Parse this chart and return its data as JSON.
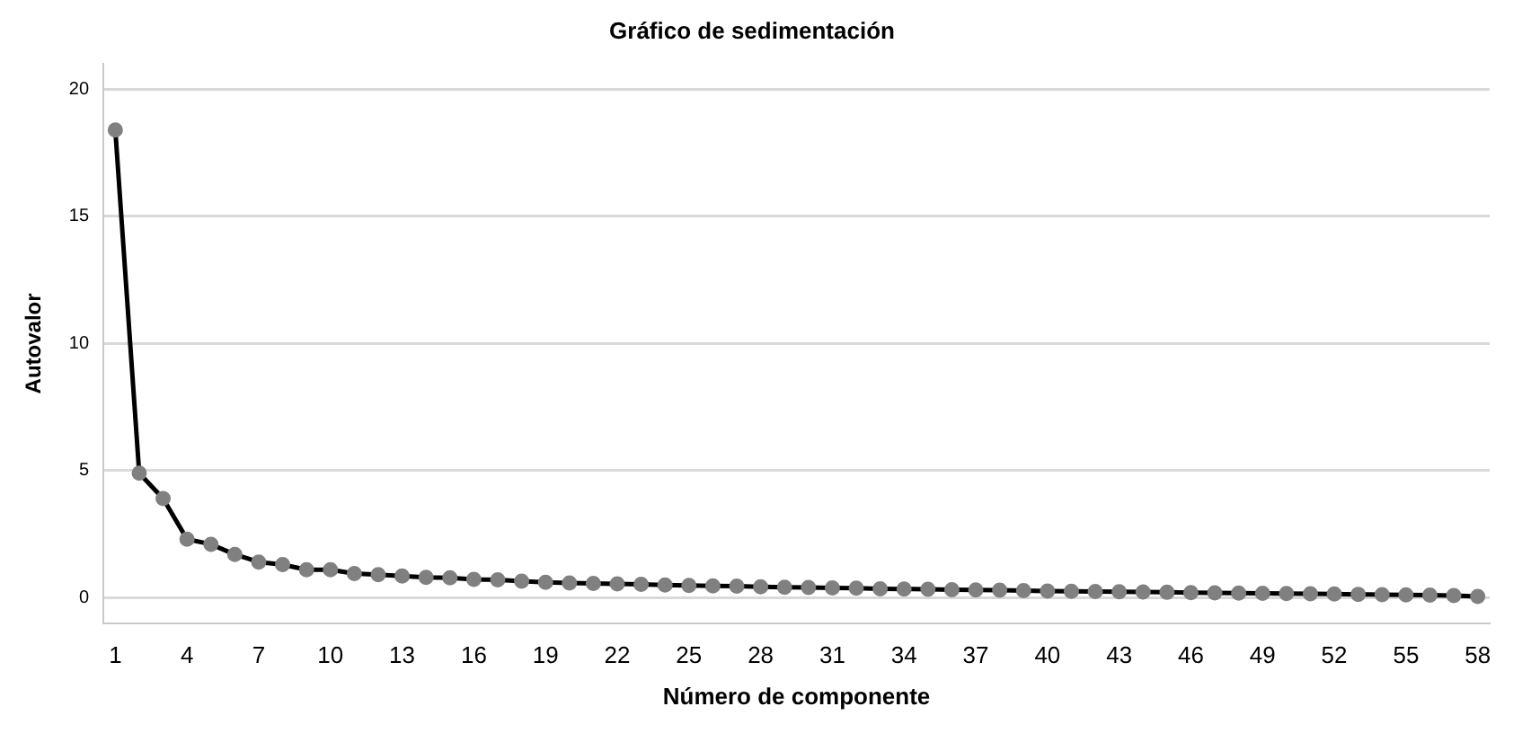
{
  "chart_data": {
    "type": "line",
    "title": "Gráfico de sedimentación",
    "xlabel": "Número de componente",
    "ylabel": "Autovalor",
    "categories": [
      "1",
      null,
      null,
      "4",
      null,
      null,
      "7",
      null,
      null,
      "10",
      null,
      null,
      "13",
      null,
      null,
      "16",
      null,
      null,
      "19",
      null,
      null,
      "22",
      null,
      null,
      "25",
      null,
      null,
      "28",
      null,
      null,
      "31",
      null,
      null,
      "34",
      null,
      null,
      "37",
      null,
      null,
      "40",
      null,
      null,
      "43",
      null,
      null,
      "46",
      null,
      null,
      "49",
      null,
      null,
      "52",
      null,
      null,
      "55",
      null,
      null,
      "58"
    ],
    "series": [
      {
        "color": "#000000",
        "values": [
          18.4,
          4.9,
          3.9,
          2.3,
          2.1,
          1.7,
          1.4,
          1.3,
          1.1,
          1.1,
          0.95,
          0.9,
          0.85,
          0.8,
          0.78,
          0.72,
          0.7,
          0.65,
          0.6,
          0.58,
          0.56,
          0.54,
          0.52,
          0.5,
          0.48,
          0.46,
          0.45,
          0.43,
          0.41,
          0.4,
          0.38,
          0.37,
          0.35,
          0.34,
          0.33,
          0.31,
          0.3,
          0.29,
          0.28,
          0.26,
          0.25,
          0.24,
          0.23,
          0.22,
          0.21,
          0.2,
          0.19,
          0.18,
          0.17,
          0.16,
          0.15,
          0.14,
          0.13,
          0.12,
          0.11,
          0.1,
          0.08,
          0.05
        ]
      }
    ],
    "ylim": [
      -1,
      21
    ],
    "yticks": [
      0,
      5,
      10,
      15,
      20
    ],
    "grid": "y",
    "legend": false,
    "marker": "circle",
    "line_style": "solid"
  }
}
